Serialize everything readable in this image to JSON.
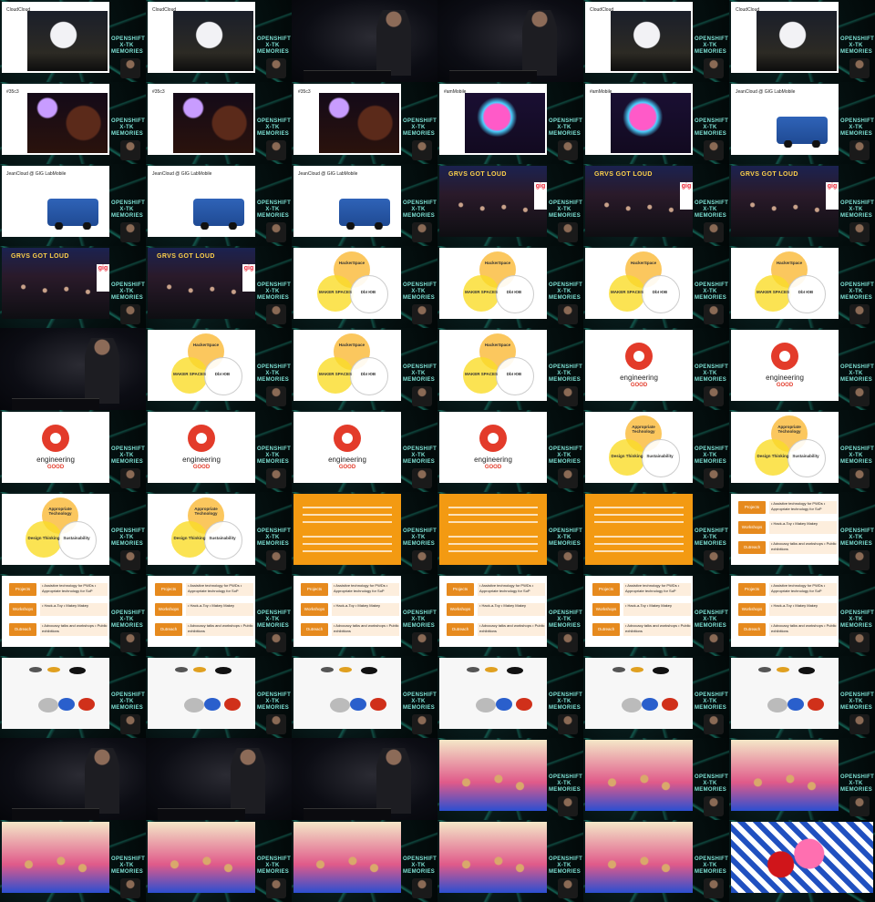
{
  "grid": {
    "cols": 6,
    "rows": 11
  },
  "colors": {
    "accent": "#f39a12",
    "brand_red": "#e33b2a",
    "teal": "#7fe3d6"
  },
  "brand_lines": [
    "OPENSHIFT",
    "X-TK",
    "MEMORIES"
  ],
  "tiles": [
    {
      "type": "slide-photo",
      "variant": "night",
      "caption": "CloudCloud"
    },
    {
      "type": "slide-photo",
      "variant": "night",
      "caption": "CloudCloud"
    },
    {
      "type": "stage"
    },
    {
      "type": "stage"
    },
    {
      "type": "slide-photo",
      "variant": "night",
      "caption": "CloudCloud"
    },
    {
      "type": "slide-photo",
      "variant": "night",
      "caption": "CloudCloud"
    },
    {
      "type": "slide-photo",
      "variant": "purple",
      "caption": "#35c3"
    },
    {
      "type": "slide-photo",
      "variant": "purple",
      "caption": "#35c3"
    },
    {
      "type": "slide-photo",
      "variant": "purple",
      "caption": "#35c3"
    },
    {
      "type": "slide-photo",
      "variant": "pink",
      "caption": "#amMobile"
    },
    {
      "type": "slide-photo",
      "variant": "pink",
      "caption": "#amMobile"
    },
    {
      "type": "truck",
      "caption": "JeanCloud @ GIG LabMobile"
    },
    {
      "type": "truck",
      "caption": "JeanCloud @ GIG LabMobile"
    },
    {
      "type": "truck",
      "caption": "JeanCloud @ GIG LabMobile"
    },
    {
      "type": "truck",
      "caption": "JeanCloud @ GIG LabMobile"
    },
    {
      "type": "crowd",
      "caption": "GRVS GOT LOUD"
    },
    {
      "type": "crowd",
      "caption": "GRVS GOT LOUD"
    },
    {
      "type": "crowd",
      "caption": "GRVS GOT LOUD"
    },
    {
      "type": "crowd",
      "caption": "GRVS GOT LOUD"
    },
    {
      "type": "crowd",
      "caption": "GRVS GOT LOUD"
    },
    {
      "type": "venn1"
    },
    {
      "type": "venn1"
    },
    {
      "type": "venn1"
    },
    {
      "type": "venn1"
    },
    {
      "type": "stage"
    },
    {
      "type": "venn1"
    },
    {
      "type": "venn1"
    },
    {
      "type": "venn1"
    },
    {
      "type": "eg"
    },
    {
      "type": "eg"
    },
    {
      "type": "eg"
    },
    {
      "type": "eg"
    },
    {
      "type": "eg"
    },
    {
      "type": "eg"
    },
    {
      "type": "venn2"
    },
    {
      "type": "venn2"
    },
    {
      "type": "venn2"
    },
    {
      "type": "venn2"
    },
    {
      "type": "orange"
    },
    {
      "type": "orange"
    },
    {
      "type": "orange"
    },
    {
      "type": "programs"
    },
    {
      "type": "programs"
    },
    {
      "type": "programs"
    },
    {
      "type": "programs"
    },
    {
      "type": "programs"
    },
    {
      "type": "programs"
    },
    {
      "type": "programs"
    },
    {
      "type": "devices"
    },
    {
      "type": "devices"
    },
    {
      "type": "devices"
    },
    {
      "type": "devices"
    },
    {
      "type": "devices"
    },
    {
      "type": "devices"
    },
    {
      "type": "stage"
    },
    {
      "type": "stage"
    },
    {
      "type": "stage"
    },
    {
      "type": "kids"
    },
    {
      "type": "kids"
    },
    {
      "type": "kids"
    },
    {
      "type": "kids"
    },
    {
      "type": "kids"
    },
    {
      "type": "kids"
    },
    {
      "type": "kids"
    },
    {
      "type": "kids"
    },
    {
      "type": "toy"
    }
  ],
  "venn1": {
    "a": "HackerSpace",
    "b": "MAKER SPACES",
    "c": "DbI ЮB"
  },
  "venn2": {
    "a": "Appropriate Technology",
    "b": "Design Thinking",
    "c": "Sustainability"
  },
  "eg": {
    "line1": "engineering",
    "line2": "GOOD"
  },
  "programs": {
    "labels": [
      "Projects",
      "Workshops",
      "Outreach"
    ],
    "items": [
      "• Assistive technology for PWDs • Appropriate technology for SoP",
      "• Hack-a-Toy • Makey Makey",
      "• Advocacy talks and workshops • Public exhibitions"
    ]
  }
}
